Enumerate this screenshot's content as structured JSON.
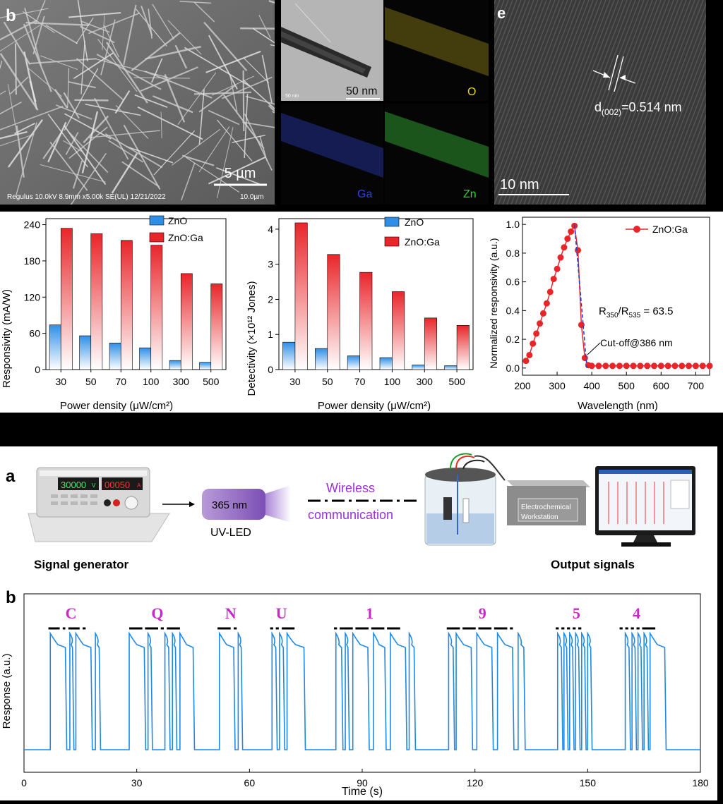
{
  "top": {
    "sem": {
      "label": "b",
      "scale": "5 µm",
      "footer": "Regulus 10.0kV 8.9mm x5.00k SE(UL) 12/21/2022",
      "footer_scale": "10.0µm"
    },
    "tem": {
      "scale": "50 nm",
      "small": "50 nm",
      "maps": [
        "O",
        "Ga",
        "Zn"
      ],
      "colors": {
        "O": "#e6d21e",
        "Ga": "#2f3ff0",
        "Zn": "#35d135"
      }
    },
    "hrtem": {
      "label": "e",
      "scale": "10 nm",
      "d_main": "d",
      "d_sub": "(002)",
      "d_val": "=0.514 nm"
    }
  },
  "chart_data": [
    {
      "id": "f",
      "type": "bar",
      "title": "",
      "xlabel": "Power density (μW/cm²)",
      "ylabel": "Responsivity (mA/W)",
      "categories": [
        "30",
        "50",
        "70",
        "100",
        "300",
        "500"
      ],
      "ylim": [
        0,
        250
      ],
      "yticks": [
        "0",
        "60",
        "120",
        "180",
        "240"
      ],
      "series": [
        {
          "name": "ZnO",
          "color": "#2f8fe6",
          "values": [
            74,
            56,
            44,
            36,
            15,
            12
          ]
        },
        {
          "name": "ZnO:Ga",
          "color": "#e8262a",
          "values": [
            234,
            225,
            214,
            206,
            159,
            142
          ]
        }
      ]
    },
    {
      "id": "e2",
      "type": "bar",
      "title": "",
      "xlabel": "Power density (μW/cm²)",
      "ylabel": "Detectivity (×10¹² Jones)",
      "categories": [
        "30",
        "50",
        "70",
        "100",
        "300",
        "500"
      ],
      "ylim": [
        0,
        4.3
      ],
      "yticks": [
        "0",
        "1",
        "2",
        "3",
        "4"
      ],
      "series": [
        {
          "name": "ZnO",
          "color": "#2f8fe6",
          "values": [
            0.78,
            0.6,
            0.39,
            0.34,
            0.13,
            0.11
          ]
        },
        {
          "name": "ZnO:Ga",
          "color": "#e8262a",
          "values": [
            4.18,
            3.28,
            2.77,
            2.22,
            1.47,
            1.26
          ]
        }
      ]
    },
    {
      "id": "g",
      "type": "line",
      "title": "",
      "xlabel": "Wavelength (nm)",
      "ylabel": "Normalized responsivity (a.u.)",
      "xlim": [
        200,
        740
      ],
      "ylim": [
        -0.05,
        1.05
      ],
      "xticks": [
        "200",
        "300",
        "400",
        "500",
        "600",
        "700"
      ],
      "yticks": [
        "0.0",
        "0.2",
        "0.4",
        "0.6",
        "0.8",
        "1.0"
      ],
      "series": [
        {
          "name": "ZnO:Ga",
          "color": "#e8262a",
          "x": [
            210,
            220,
            230,
            240,
            250,
            260,
            270,
            280,
            290,
            300,
            310,
            320,
            330,
            340,
            350,
            360,
            370,
            380,
            390,
            400,
            420,
            440,
            460,
            480,
            500,
            520,
            540,
            560,
            580,
            600,
            620,
            640,
            660,
            680,
            700,
            720,
            740
          ],
          "y": [
            0.05,
            0.09,
            0.17,
            0.24,
            0.31,
            0.38,
            0.45,
            0.53,
            0.62,
            0.69,
            0.77,
            0.84,
            0.9,
            0.95,
            0.99,
            0.82,
            0.3,
            0.07,
            0.02,
            0.015,
            0.015,
            0.015,
            0.015,
            0.015,
            0.015,
            0.015,
            0.015,
            0.015,
            0.015,
            0.015,
            0.015,
            0.015,
            0.015,
            0.015,
            0.015,
            0.015,
            0.015
          ]
        }
      ],
      "annotations": {
        "ratio_main": "R",
        "ratio_s1": "350",
        "ratio_sep": "/R",
        "ratio_s2": "535",
        "ratio_val": " = 63.5",
        "cutoff": "Cut-off@386 nm"
      }
    },
    {
      "id": "b",
      "type": "line",
      "title": "",
      "xlabel": "Time (s)",
      "ylabel": "Response (a.u.)",
      "xlim": [
        0,
        180
      ],
      "xticks": [
        "0",
        "30",
        "60",
        "90",
        "120",
        "150",
        "180"
      ],
      "letters": [
        {
          "char": "C",
          "x": 12.5
        },
        {
          "char": "Q",
          "x": 35.5
        },
        {
          "char": "N",
          "x": 55
        },
        {
          "char": "U",
          "x": 68.5
        },
        {
          "char": "1",
          "x": 92
        },
        {
          "char": "9",
          "x": 122
        },
        {
          "char": "5",
          "x": 147
        },
        {
          "char": "4",
          "x": 163
        }
      ],
      "pulses": [
        [
          7,
          11
        ],
        [
          12.2,
          12.9
        ],
        [
          13.8,
          17.8
        ],
        [
          19,
          20
        ],
        [
          28,
          32
        ],
        [
          33,
          33.8
        ],
        [
          37.5,
          38.5
        ],
        [
          39.5,
          40.3
        ],
        [
          41.5,
          45
        ],
        [
          52,
          55.8
        ],
        [
          57,
          57.8
        ],
        [
          66,
          67
        ],
        [
          68,
          69
        ],
        [
          70,
          74.5
        ],
        [
          83,
          84.5
        ],
        [
          85.5,
          86.2
        ],
        [
          87.5,
          91.5
        ],
        [
          93,
          96
        ],
        [
          97.5,
          101.5
        ],
        [
          102.5,
          103.8
        ],
        [
          113,
          114.2
        ],
        [
          115,
          119
        ],
        [
          120.5,
          124.5
        ],
        [
          126,
          130
        ],
        [
          131.5,
          133
        ],
        [
          142,
          143
        ],
        [
          143.7,
          144.4
        ],
        [
          145.2,
          146
        ],
        [
          146.8,
          147.6
        ],
        [
          148.4,
          149.2
        ],
        [
          150,
          150.8
        ],
        [
          160,
          161
        ],
        [
          161.8,
          162.6
        ],
        [
          163.4,
          164.2
        ],
        [
          165,
          165.8
        ],
        [
          166.6,
          170.5
        ]
      ],
      "color": "#1e88e5"
    }
  ],
  "panel_a": {
    "label_a": "a",
    "label_b": "b",
    "led_wavelength": "365 nm",
    "led_name": "UV-LED",
    "wireless_line1": "Wireless",
    "wireless_line2": "communication",
    "workstation_line1": "Electrochemical",
    "workstation_line2": "Workstation",
    "signal_generator": "Signal generator",
    "output_signals": "Output signals",
    "psu_readout1": "30000",
    "psu_unit1": "V",
    "psu_readout2": "00050",
    "psu_unit2": "A"
  }
}
